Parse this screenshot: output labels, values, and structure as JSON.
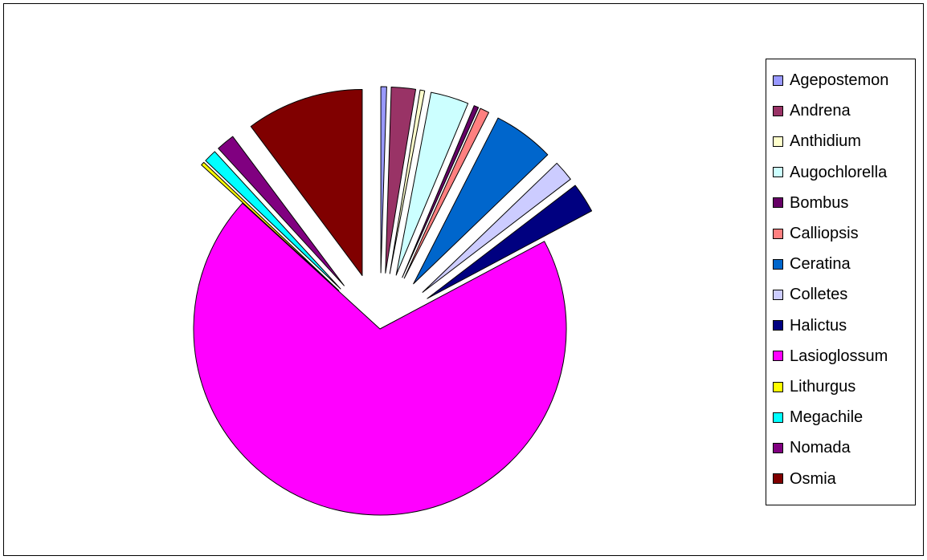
{
  "chart_data": {
    "type": "pie",
    "title": "",
    "legend_position": "right",
    "exploded": true,
    "slices": [
      {
        "label": "Agepostemon",
        "value": 0.5,
        "color": "#9999FF"
      },
      {
        "label": "Andrena",
        "value": 2.1,
        "color": "#993366"
      },
      {
        "label": "Anthidium",
        "value": 0.4,
        "color": "#FFFFCC"
      },
      {
        "label": "Augochlorella",
        "value": 3.3,
        "color": "#CCFFFF"
      },
      {
        "label": "Bombus",
        "value": 0.4,
        "color": "#660066"
      },
      {
        "label": "Calliopsis",
        "value": 0.8,
        "color": "#FF8080"
      },
      {
        "label": "Ceratina",
        "value": 5.3,
        "color": "#0066CC"
      },
      {
        "label": "Colletes",
        "value": 1.8,
        "color": "#CCCCFF"
      },
      {
        "label": "Halictus",
        "value": 2.6,
        "color": "#000080"
      },
      {
        "label": "Lasioglossum",
        "value": 69.6,
        "color": "#FF00FF"
      },
      {
        "label": "Lithurgus",
        "value": 0.3,
        "color": "#FFFF00"
      },
      {
        "label": "Megachile",
        "value": 1.1,
        "color": "#00FFFF"
      },
      {
        "label": "Nomada",
        "value": 1.6,
        "color": "#800080"
      },
      {
        "label": "Osmia",
        "value": 10.2,
        "color": "#800000"
      }
    ]
  }
}
